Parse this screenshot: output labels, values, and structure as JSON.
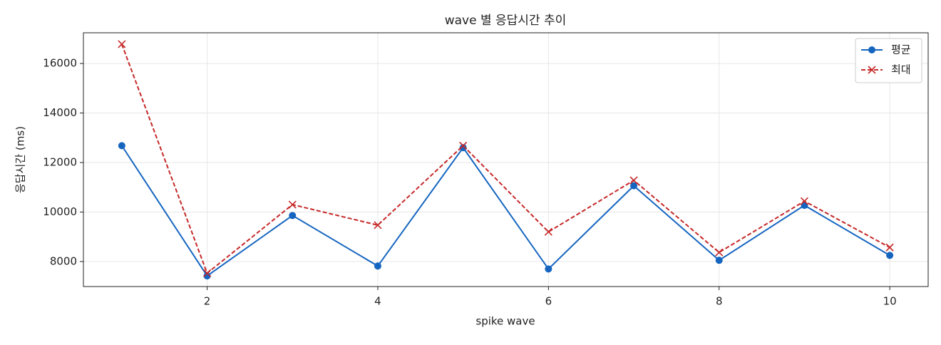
{
  "chart_data": {
    "type": "line",
    "title": "wave 별 응답시간 추이",
    "x_label": "spike wave",
    "y_label": "응답시간 (ms)",
    "x": [
      1,
      2,
      3,
      4,
      5,
      6,
      7,
      8,
      9,
      10
    ],
    "series": [
      {
        "name": "평균",
        "color": "#1565c0",
        "linestyle": "solid",
        "marker": "circle",
        "values": [
          12680,
          7420,
          9860,
          7820,
          12600,
          7700,
          11060,
          8050,
          10270,
          8250
        ]
      },
      {
        "name": "최대",
        "color": "#c62828",
        "linestyle": "dashed",
        "marker": "x",
        "values": [
          16780,
          7530,
          10300,
          9470,
          12680,
          9200,
          11280,
          8370,
          10440,
          8570
        ]
      }
    ],
    "xlim": [
      0.55,
      10.45
    ],
    "xticks": [
      2,
      4,
      6,
      8,
      10
    ],
    "ylim": [
      6990,
      17240
    ],
    "yticks": [
      8000,
      10000,
      12000,
      14000,
      16000
    ],
    "grid": true,
    "legend": "upper right"
  }
}
